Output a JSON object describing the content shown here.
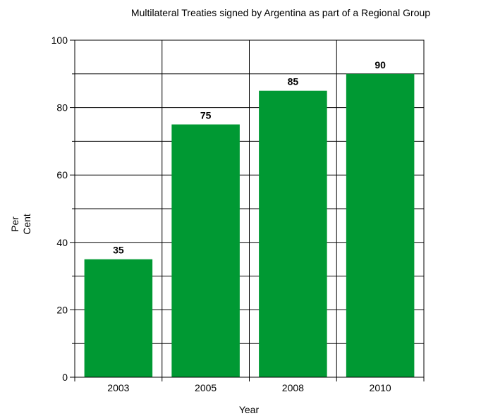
{
  "chart_data": {
    "type": "bar",
    "title": "Multilateral Treaties signed by Argentina as part of a Regional Group",
    "xlabel": "Year",
    "ylabel_lines": [
      "Per",
      "Cent"
    ],
    "categories": [
      "2003",
      "2005",
      "2008",
      "2010"
    ],
    "values": [
      35,
      75,
      85,
      90
    ],
    "data_labels": [
      "35",
      "75",
      "85",
      "90"
    ],
    "ylim": [
      0,
      100
    ],
    "y_ticks": [
      0,
      20,
      40,
      60,
      80,
      100
    ],
    "y_tick_labels": [
      "0",
      "20",
      "40",
      "60",
      "80",
      "100"
    ],
    "y_minor_step": 10,
    "grid": true,
    "bar_color": "#009933"
  }
}
